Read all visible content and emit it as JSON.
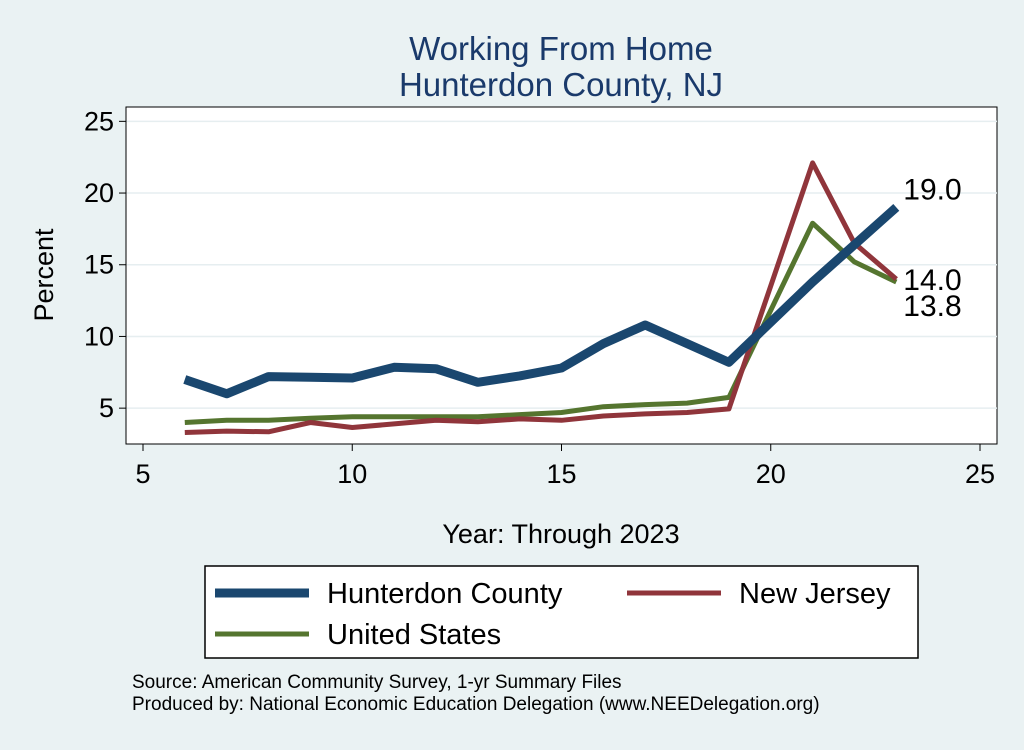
{
  "chart_data": {
    "type": "line",
    "title": [
      "Working From Home",
      "Hunterdon County, NJ"
    ],
    "xlabel": "Year: Through 2023",
    "ylabel": "Percent",
    "xlim": [
      5,
      25
    ],
    "ylim": [
      2.5,
      26
    ],
    "xticks": [
      5,
      10,
      15,
      20,
      25
    ],
    "yticks": [
      5,
      10,
      15,
      20,
      25
    ],
    "grid": "horizontal",
    "legend": "bottom",
    "series": [
      {
        "name": "Hunterdon County",
        "color": "#1a476f",
        "x": [
          6,
          7,
          8,
          9,
          10,
          11,
          12,
          13,
          14,
          15,
          16,
          17,
          18,
          19,
          21,
          23
        ],
        "y": [
          7.0,
          6.0,
          7.2,
          7.15,
          7.1,
          7.85,
          7.75,
          6.8,
          7.25,
          7.8,
          9.5,
          10.8,
          9.5,
          8.2,
          13.8,
          19.0
        ],
        "end_label": "19.0"
      },
      {
        "name": "New Jersey",
        "color": "#90353b",
        "x": [
          6,
          7,
          8,
          9,
          10,
          11,
          12,
          13,
          14,
          15,
          16,
          17,
          18,
          19,
          21,
          22,
          23
        ],
        "y": [
          3.3,
          3.4,
          3.35,
          4.0,
          3.65,
          3.9,
          4.15,
          4.05,
          4.25,
          4.15,
          4.45,
          4.6,
          4.7,
          4.95,
          22.1,
          16.5,
          14.0
        ],
        "end_label": "14.0"
      },
      {
        "name": "United States",
        "color": "#55752f",
        "x": [
          6,
          7,
          8,
          9,
          10,
          11,
          12,
          13,
          14,
          15,
          16,
          17,
          18,
          19,
          21,
          22,
          23
        ],
        "y": [
          4.0,
          4.15,
          4.15,
          4.3,
          4.4,
          4.4,
          4.4,
          4.4,
          4.55,
          4.7,
          5.1,
          5.25,
          5.35,
          5.75,
          17.9,
          15.2,
          13.8
        ],
        "end_label": "13.8"
      }
    ]
  },
  "notes": [
    "Source: American Community Survey, 1-yr Summary Files",
    "Produced by: National Economic Education Delegation (www.NEEDelegation.org)"
  ]
}
